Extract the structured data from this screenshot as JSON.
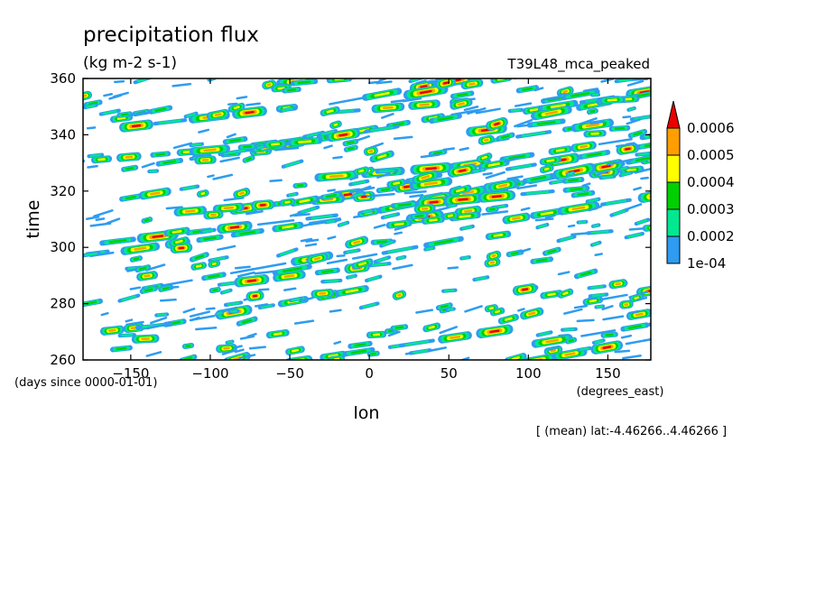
{
  "chart_data": {
    "type": "heatmap",
    "title": "precipitation flux",
    "units": "(kg m-2 s-1)",
    "run_label": "T39L48_mca_peaked",
    "xlabel": "lon",
    "xunits": "(degrees_east)",
    "ylabel": "time",
    "yunits": "(days since 0000-01-01)",
    "xlim": [
      -180,
      177
    ],
    "ylim": [
      260,
      360
    ],
    "xticks": [
      -150,
      -100,
      -50,
      0,
      50,
      100,
      150
    ],
    "yticks": [
      260,
      280,
      300,
      320,
      340,
      360
    ],
    "levels": [
      0.0001,
      0.0002,
      0.0003,
      0.0004,
      0.0005,
      0.0006
    ],
    "level_labels": [
      "1e-04",
      "0.0002",
      "0.0003",
      "0.0004",
      "0.0005",
      "0.0006"
    ],
    "colors": [
      "#2e9cf0",
      "#00e890",
      "#00d000",
      "#ffff00",
      "#ff9e00",
      "#e80000"
    ],
    "extend": "max",
    "pattern": "eastward-propagating precipitation streaks (convectively coupled waves) over all longitudes",
    "footer_note": "[ (mean) lat:-4.46266..4.46266 ]"
  }
}
